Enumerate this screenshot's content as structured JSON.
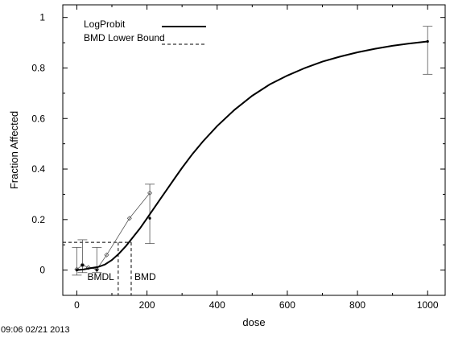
{
  "chart_data": {
    "type": "line",
    "title": "",
    "xlabel": "dose",
    "ylabel": "Fraction Affected",
    "xlim": [
      -40,
      1050
    ],
    "ylim": [
      -0.1,
      1.05
    ],
    "xticks": [
      0,
      200,
      400,
      600,
      800,
      1000
    ],
    "yticks": [
      0,
      0.2,
      0.4,
      0.6,
      0.8,
      1
    ],
    "xtick_labels": [
      "0",
      "200",
      "400",
      "600",
      "800",
      "1000"
    ],
    "ytick_labels": [
      "0",
      "0.2",
      "0.4",
      "0.6",
      "0.8",
      "1"
    ],
    "grid": false,
    "legend_position": "top-left",
    "series": [
      {
        "name": "LogProbit",
        "style": "solid-thick",
        "x": [
          0,
          20,
          40,
          60,
          80,
          100,
          120,
          140,
          160,
          180,
          200,
          220,
          240,
          260,
          280,
          300,
          330,
          360,
          400,
          450,
          500,
          550,
          600,
          650,
          700,
          750,
          800,
          850,
          900,
          950,
          1000
        ],
        "y": [
          0.0,
          0.003,
          0.008,
          0.012,
          0.022,
          0.04,
          0.065,
          0.095,
          0.13,
          0.165,
          0.205,
          0.245,
          0.285,
          0.325,
          0.365,
          0.405,
          0.46,
          0.51,
          0.57,
          0.635,
          0.69,
          0.735,
          0.77,
          0.8,
          0.825,
          0.845,
          0.862,
          0.876,
          0.888,
          0.897,
          0.905
        ]
      },
      {
        "name": "BMD Lower Bound",
        "style": "dashed"
      }
    ],
    "observed": {
      "x": [
        0,
        16,
        33,
        57,
        85,
        150,
        208
      ],
      "y": [
        0.003,
        0.02,
        0.01,
        0.003,
        0.06,
        0.205,
        0.305
      ]
    },
    "error_bars": [
      {
        "x": 0,
        "y": 0.0,
        "lo": -0.02,
        "hi": 0.09
      },
      {
        "x": 16,
        "y": 0.02,
        "lo": -0.01,
        "hi": 0.12
      },
      {
        "x": 57,
        "y": 0.0,
        "lo": -0.01,
        "hi": 0.09
      },
      {
        "x": 208,
        "y": 0.205,
        "lo": 0.105,
        "hi": 0.34
      },
      {
        "x": 1000,
        "y": 0.905,
        "lo": 0.775,
        "hi": 0.965
      }
    ],
    "bmr_level": 0.11,
    "bmdl": 118,
    "bmd": 155,
    "annotations": [
      "BMDL",
      "BMD"
    ]
  },
  "timestamp": "09:06 02/21 2013"
}
